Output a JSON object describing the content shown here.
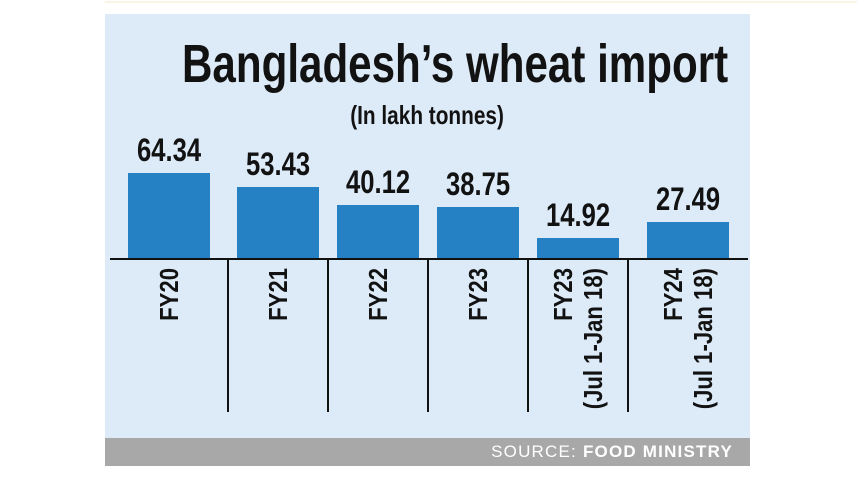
{
  "title": "Bangladesh’s wheat import",
  "subtitle": "(In lakh tonnes)",
  "source_bar": {
    "label": "SOURCE:",
    "value": "FOOD MINISTRY",
    "background": "#a8a8a8",
    "text_color": "#ffffff"
  },
  "panel": {
    "background": "#ddebf9"
  },
  "chart_data": {
    "type": "bar",
    "title": "Bangladesh’s wheat import",
    "subtitle": "(In lakh tonnes)",
    "unit": "lakh tonnes",
    "categories": [
      "FY20",
      "FY21",
      "FY22",
      "FY23",
      "FY23 (Jul 1-Jan 18)",
      "FY24 (Jul 1-Jan 18)"
    ],
    "category_lines": [
      [
        "FY20"
      ],
      [
        "FY21"
      ],
      [
        "FY22"
      ],
      [
        "FY23"
      ],
      [
        "FY23",
        "(Jul 1-Jan 18)"
      ],
      [
        "FY24",
        "(Jul 1-Jan 18)"
      ]
    ],
    "values": [
      64.34,
      53.43,
      40.12,
      38.75,
      14.92,
      27.49
    ],
    "value_labels_shown": true,
    "orientation": "vertical",
    "bar_color": "#2580c4",
    "axis_color": "#111111",
    "text_color": "#121212",
    "ylim": [
      0,
      70
    ],
    "grid": false,
    "legend": false,
    "source": "FOOD MINISTRY"
  }
}
